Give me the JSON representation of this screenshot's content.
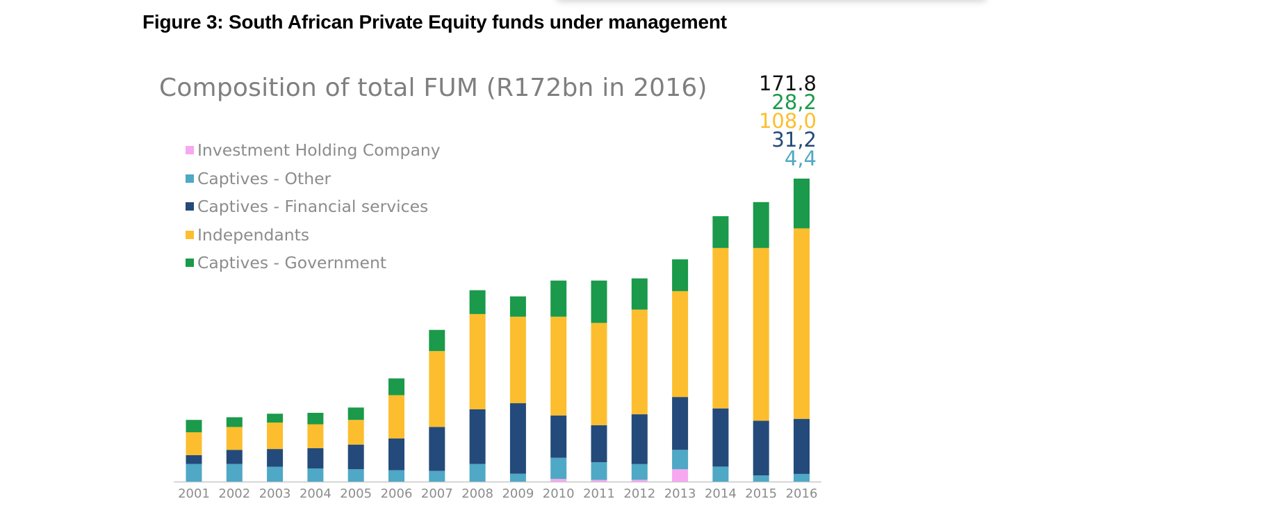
{
  "figure_title": "Figure 3: South African Private Equity funds under management",
  "chart_data": {
    "type": "bar",
    "stacked": true,
    "title": "Composition of total FUM (R172bn in 2016)",
    "xlabel": "",
    "ylabel": "",
    "ylim": [
      0,
      171.8
    ],
    "grid": false,
    "legend_position": "top-left",
    "categories": [
      "2001",
      "2002",
      "2003",
      "2004",
      "2005",
      "2006",
      "2007",
      "2008",
      "2009",
      "2010",
      "2011",
      "2012",
      "2013",
      "2014",
      "2015",
      "2016"
    ],
    "series": [
      {
        "name": "Investment Holding Company",
        "color": "#f7a8f0",
        "values": [
          0,
          0,
          0,
          0,
          0,
          0,
          0,
          0,
          0,
          1.5,
          1,
          1,
          7,
          0,
          0,
          0
        ]
      },
      {
        "name": "Captives - Other",
        "color": "#4fa8c5",
        "values": [
          10,
          10,
          8.5,
          7.5,
          7,
          6.5,
          6,
          10,
          4.5,
          12,
          10,
          9,
          11,
          8.5,
          3.5,
          4.4
        ]
      },
      {
        "name": "Captives - Financial services",
        "color": "#234a7a",
        "values": [
          5,
          8,
          10,
          11.5,
          14,
          18,
          25,
          31,
          40,
          24,
          21,
          28.2,
          30,
          33,
          31,
          31.2
        ]
      },
      {
        "name": "Independants",
        "color": "#fcbe2e",
        "values": [
          13,
          13,
          15,
          13.5,
          14,
          24.5,
          43,
          54,
          49,
          56,
          58,
          59.3,
          60,
          91,
          98,
          108.0
        ]
      },
      {
        "name": "Captives - Government",
        "color": "#1a9a4a",
        "values": [
          7,
          5.5,
          5,
          6.5,
          7,
          9.5,
          12,
          13.5,
          11.5,
          20.5,
          24,
          17.7,
          18,
          18,
          26,
          28.2
        ]
      }
    ],
    "annotations": [
      {
        "text": "171.8",
        "color": "#111111"
      },
      {
        "text": "28,2",
        "color": "#1a9a4a"
      },
      {
        "text": "108,0",
        "color": "#fcbe2e"
      },
      {
        "text": "31,2",
        "color": "#234a7a"
      },
      {
        "text": "4,4",
        "color": "#4fa8c5"
      }
    ]
  }
}
